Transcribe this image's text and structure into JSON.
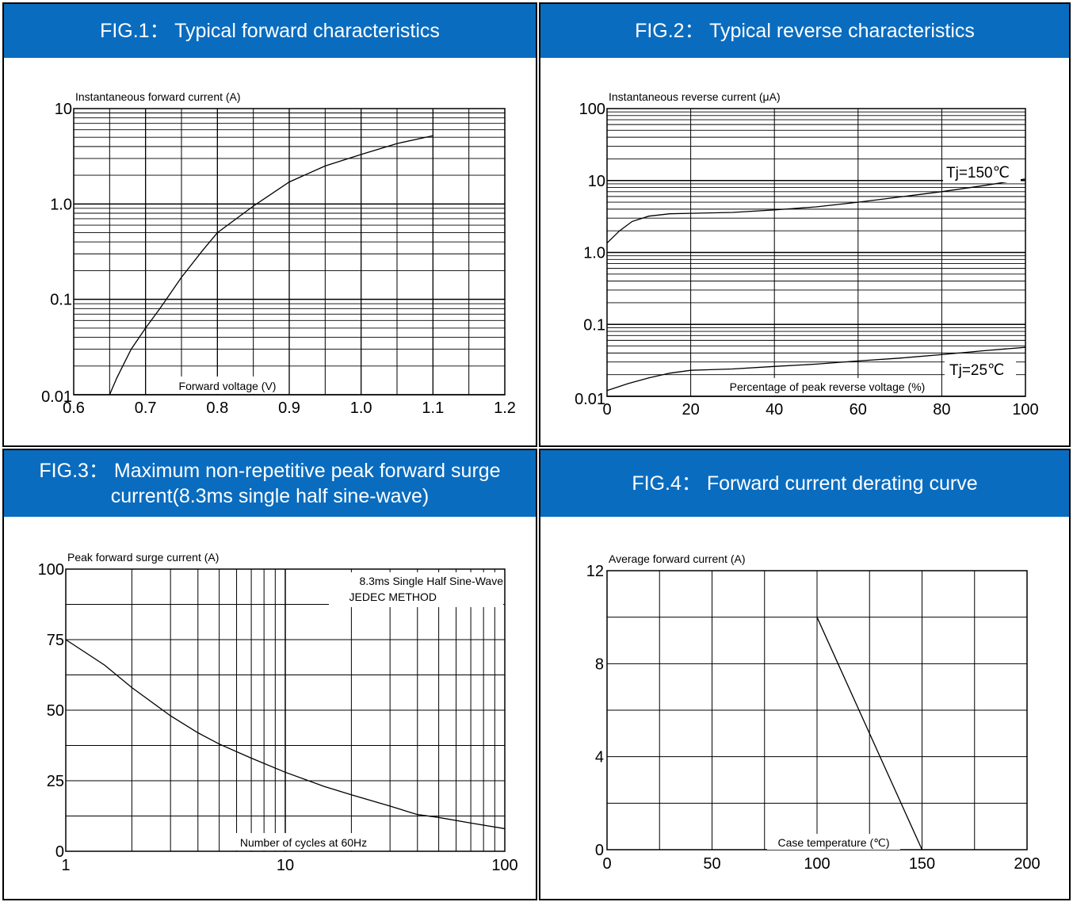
{
  "figures": [
    {
      "title_lines": [
        "FIG.1：  Typical forward characteristics"
      ]
    },
    {
      "title_lines": [
        "FIG.2：  Typical reverse characteristics"
      ]
    },
    {
      "title_lines": [
        "FIG.3：  Maximum non-repetitive peak forward surge",
        "current(8.3ms single half sine-wave)"
      ]
    },
    {
      "title_lines": [
        "FIG.4：    Forward current derating curve"
      ]
    }
  ],
  "chart_data": [
    {
      "type": "line",
      "ylabel": "Instantaneous forward current (A)",
      "xlabel": "Forward voltage (V)",
      "x_ticks": [
        "0.6",
        "0.7",
        "0.8",
        "0.9",
        "1.0",
        "1.1",
        "1.2"
      ],
      "y_ticks": [
        "0.01",
        "0.1",
        "1.0",
        "10"
      ],
      "xlim": [
        0.6,
        1.2
      ],
      "ylim": [
        0.01,
        10
      ],
      "y_scale": "log",
      "grid": true,
      "series": [
        {
          "x": [
            0.65,
            0.66,
            0.68,
            0.7,
            0.72,
            0.75,
            0.78,
            0.8,
            0.85,
            0.9,
            0.95,
            1.0,
            1.05,
            1.1
          ],
          "y": [
            0.01,
            0.015,
            0.03,
            0.05,
            0.08,
            0.17,
            0.33,
            0.5,
            0.95,
            1.7,
            2.5,
            3.3,
            4.3,
            5.2
          ]
        }
      ]
    },
    {
      "type": "line",
      "ylabel": "Instantaneous reverse current (μA)",
      "xlabel": "Percentage of peak reverse voltage (%)",
      "x_ticks": [
        "0",
        "20",
        "40",
        "60",
        "80",
        "100"
      ],
      "y_ticks": [
        "0.01",
        "0.1",
        "1.0",
        "10",
        "100"
      ],
      "xlim": [
        0,
        100
      ],
      "ylim": [
        0.01,
        100
      ],
      "y_scale": "log",
      "grid": true,
      "annotations": [
        "Tj=150℃",
        "Tj=25℃"
      ],
      "series": [
        {
          "x": [
            0,
            3,
            6,
            10,
            15,
            20,
            30,
            40,
            50,
            60,
            70,
            80,
            90,
            100
          ],
          "y": [
            1.35,
            2.0,
            2.7,
            3.2,
            3.45,
            3.5,
            3.6,
            3.9,
            4.3,
            5.0,
            5.9,
            7.0,
            8.5,
            10.5
          ]
        },
        {
          "x": [
            0,
            5,
            10,
            15,
            20,
            30,
            40,
            50,
            60,
            70,
            80,
            90,
            100
          ],
          "y": [
            0.012,
            0.015,
            0.018,
            0.021,
            0.023,
            0.024,
            0.026,
            0.028,
            0.031,
            0.034,
            0.038,
            0.043,
            0.048
          ]
        }
      ]
    },
    {
      "type": "line",
      "ylabel": "Peak forward surge current (A)",
      "xlabel": "Number of cycles at 60Hz",
      "x_ticks": [
        "1",
        "10",
        "100"
      ],
      "y_ticks": [
        "0",
        "25",
        "50",
        "75",
        "100"
      ],
      "xlim": [
        1,
        100
      ],
      "ylim": [
        0,
        100
      ],
      "x_scale": "log",
      "grid": true,
      "annotations": [
        "8.3ms Single Half Sine-Wave",
        "JEDEC METHOD"
      ],
      "series": [
        {
          "x": [
            1,
            1.5,
            2,
            3,
            4,
            5,
            7,
            10,
            15,
            20,
            30,
            40,
            50,
            70,
            100
          ],
          "y": [
            75,
            66,
            58,
            48,
            42,
            38,
            33,
            28,
            23,
            20,
            16,
            13,
            12,
            10,
            8
          ]
        }
      ]
    },
    {
      "type": "line",
      "ylabel": "Average forward current (A)",
      "xlabel": "Case temperature (℃)",
      "x_ticks": [
        "0",
        "50",
        "100",
        "150",
        "200"
      ],
      "y_ticks": [
        "0",
        "4",
        "8",
        "12"
      ],
      "xlim": [
        0,
        200
      ],
      "ylim": [
        0,
        12
      ],
      "grid": true,
      "series": [
        {
          "x": [
            100,
            150
          ],
          "y": [
            10,
            0
          ]
        }
      ]
    }
  ]
}
